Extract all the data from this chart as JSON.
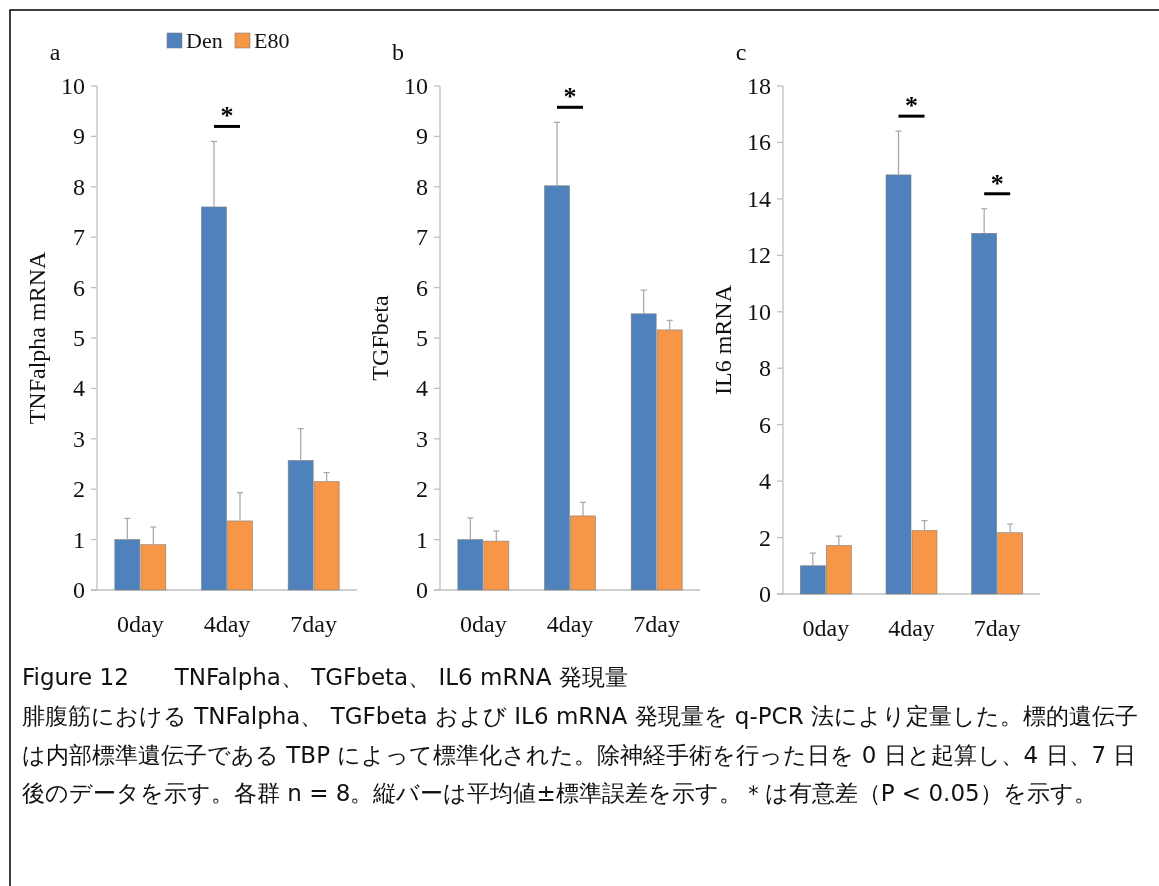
{
  "chart_data": [
    {
      "type": "bar",
      "title": "a",
      "ylabel": "TNFalpha mRNA",
      "categories": [
        "0day",
        "4day",
        "7day"
      ],
      "legend": "top",
      "series": [
        {
          "name": "Den",
          "color": "#4f81bd",
          "values": [
            1.0,
            7.6,
            2.57
          ],
          "errors": [
            [
              1.0,
              1.42
            ],
            [
              7.6,
              8.9
            ],
            [
              2.57,
              3.2
            ]
          ]
        },
        {
          "name": "E80",
          "color": "#f79646",
          "values": [
            0.9,
            1.37,
            2.15
          ],
          "errors": [
            [
              0.9,
              1.25
            ],
            [
              1.37,
              1.93
            ],
            [
              2.15,
              2.33
            ]
          ]
        }
      ],
      "ylim": [
        0,
        10
      ],
      "yticks": [
        0,
        1,
        2,
        3,
        4,
        5,
        6,
        7,
        8,
        9,
        10
      ],
      "annotations": [
        "*",
        "Figure 12　　TNFalpha、 TGFbeta、 IL6 mRNA 発現量",
        "腓腹筋における TNFalpha、 TGFbeta および IL6 mRNA 発現量を q-PCR 法により定量した。標的遺伝子は内部標準遺伝子である TBP によって標準化された。除神経手術を行った日を 0 日と起算し、4 日、7 日後のデータを示す。各群 n = 8。縦バーは平均値±標準誤差を示す。＊は有意差（P < 0.05）を示す。"
      ]
    },
    {
      "type": "bar",
      "title": "b",
      "ylabel": "TGFbeta",
      "categories": [
        "0day",
        "4day",
        "7day"
      ],
      "series": [
        {
          "color": "#4f81bd",
          "values": [
            1.0,
            8.02,
            5.48
          ],
          "errors": [
            [
              1.0,
              1.43
            ],
            [
              8.02,
              9.28
            ],
            [
              5.48,
              5.95
            ]
          ]
        },
        {
          "color": "#f79646",
          "values": [
            0.97,
            1.47,
            5.16
          ],
          "errors": [
            [
              0.97,
              1.17
            ],
            [
              1.47,
              1.74
            ],
            [
              5.16,
              5.35
            ]
          ]
        }
      ],
      "ylim": [
        0,
        10
      ],
      "yticks": [
        0,
        1,
        2,
        3,
        4,
        5,
        6,
        7,
        8,
        9,
        10
      ],
      "annotations": [
        "*"
      ]
    },
    {
      "type": "bar",
      "title": "c",
      "ylabel": "IL6 mRNA",
      "categories": [
        "0day",
        "4day",
        "7day"
      ],
      "series": [
        {
          "color": "#4f81bd",
          "values": [
            1.0,
            14.85,
            12.78
          ],
          "errors": [
            [
              1.0,
              1.45
            ],
            [
              14.85,
              16.4
            ],
            [
              12.78,
              13.65
            ]
          ]
        },
        {
          "color": "#f79646",
          "values": [
            1.72,
            2.25,
            2.17
          ],
          "errors": [
            [
              1.72,
              2.05
            ],
            [
              2.25,
              2.6
            ],
            [
              2.17,
              2.48
            ]
          ]
        }
      ],
      "ylim": [
        0,
        18
      ],
      "yticks": [
        0,
        2,
        4,
        6,
        8,
        10,
        12,
        14,
        16,
        18
      ],
      "annotations": [
        "*",
        "*"
      ]
    }
  ]
}
